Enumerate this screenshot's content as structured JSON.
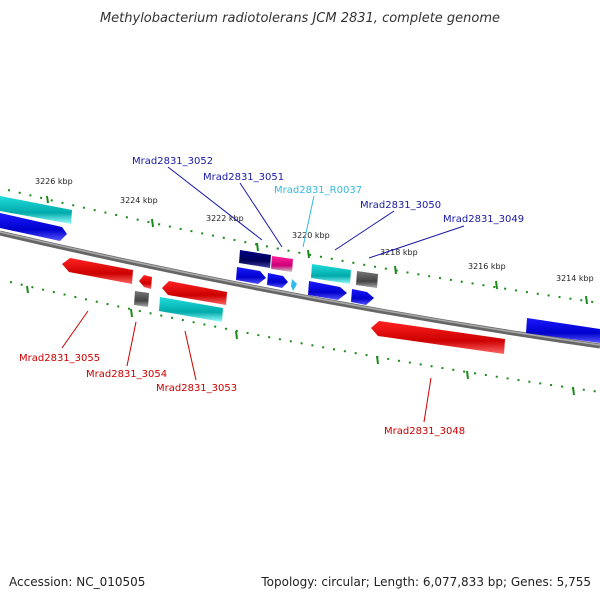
{
  "title": "Methylobacterium radiotolerans JCM 2831, complete genome",
  "footer": {
    "accession": "Accession: NC_010505",
    "topology": "Topology: circular; Length: 6,077,833 bp; Genes: 5,755"
  },
  "ticks": [
    "3226 kbp",
    "3224 kbp",
    "3222 kbp",
    "3220 kbp",
    "3218 kbp",
    "3216 kbp",
    "3214 kbp"
  ],
  "labels": {
    "g3052": "Mrad2831_3052",
    "g3051": "Mrad2831_3051",
    "r0037": "Mrad2831_R0037",
    "g3050": "Mrad2831_3050",
    "g3049": "Mrad2831_3049",
    "g3055": "Mrad2831_3055",
    "g3054": "Mrad2831_3054",
    "g3053": "Mrad2831_3053",
    "g3048": "Mrad2831_3048"
  },
  "colors": {
    "forward_label": "#1a1aa6",
    "reverse_label": "#cc0000",
    "rna_label": "#33bbdd",
    "backbone": "#777777",
    "tick": "#1a8a1a",
    "gene_blue": "#0a0ae0",
    "gene_red": "#e00000",
    "gene_cyan": "#11cccc",
    "gene_gray": "#555555",
    "gene_navy": "#000070",
    "gene_pink": "#ee1188",
    "gene_lightblue": "#33bbee"
  }
}
